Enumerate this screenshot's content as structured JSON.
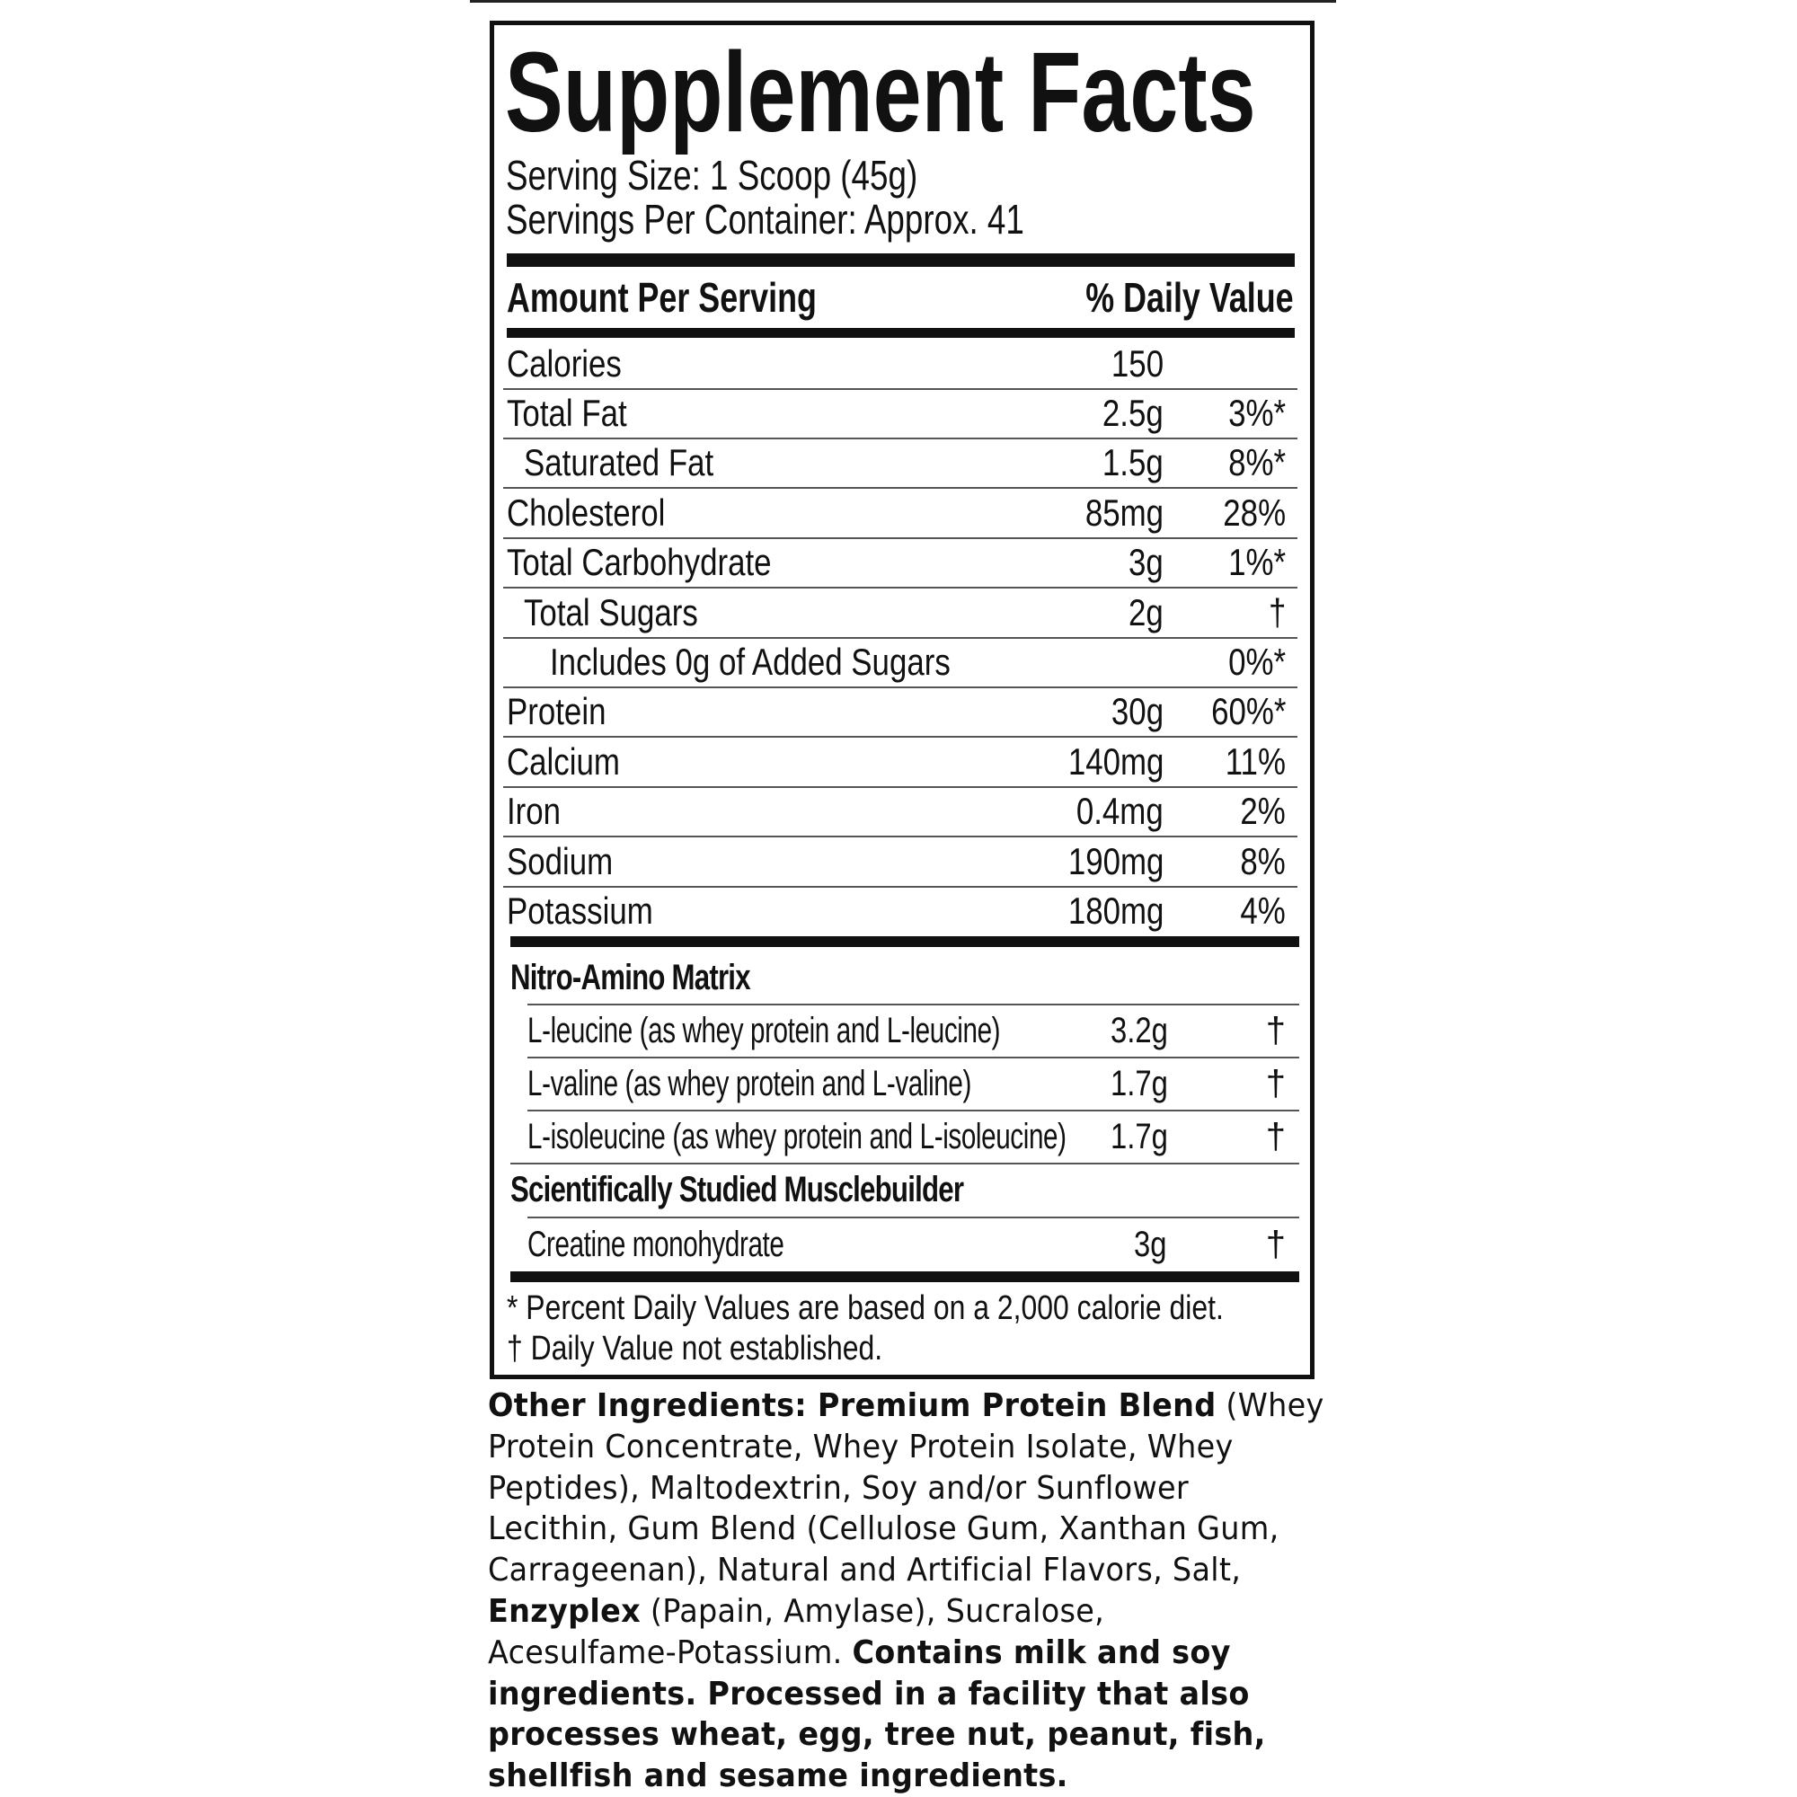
{
  "label": {
    "title": "Supplement Facts",
    "serving_size": "Serving Size: 1 Scoop (45g)",
    "servings_per_container": "Servings Per Container: Approx. 41",
    "header_left": "Amount Per Serving",
    "header_right": "% Daily Value",
    "nutrients": [
      {
        "name": "Calories",
        "amount": "150",
        "dv": "",
        "indent": 0
      },
      {
        "name": "Total Fat",
        "amount": "2.5g",
        "dv": "3%*",
        "indent": 0
      },
      {
        "name": "Saturated Fat",
        "amount": "1.5g",
        "dv": "8%*",
        "indent": 1
      },
      {
        "name": "Cholesterol",
        "amount": "85mg",
        "dv": "28%",
        "indent": 0
      },
      {
        "name": "Total Carbohydrate",
        "amount": "3g",
        "dv": "1%*",
        "indent": 0
      },
      {
        "name": "Total Sugars",
        "amount": "2g",
        "dv": "†",
        "indent": 1
      },
      {
        "name": "Includes 0g of Added Sugars",
        "amount": "",
        "dv": "0%*",
        "indent": 2
      },
      {
        "name": "Protein",
        "amount": "30g",
        "dv": "60%*",
        "indent": 0
      },
      {
        "name": "Calcium",
        "amount": "140mg",
        "dv": "11%",
        "indent": 0
      },
      {
        "name": "Iron",
        "amount": "0.4mg",
        "dv": "2%",
        "indent": 0
      },
      {
        "name": "Sodium",
        "amount": "190mg",
        "dv": "8%",
        "indent": 0
      },
      {
        "name": "Potassium",
        "amount": "180mg",
        "dv": "4%",
        "indent": 0
      }
    ],
    "sections": [
      {
        "title": "Nitro-Amino Matrix",
        "items": [
          {
            "name": "L-leucine (as whey protein and L-leucine)",
            "amount": "3.2g",
            "dv": "†"
          },
          {
            "name": "L-valine (as whey protein and L-valine)",
            "amount": "1.7g",
            "dv": "†"
          },
          {
            "name": "L-isoleucine (as whey protein and L-isoleucine)",
            "amount": "1.7g",
            "dv": "†"
          }
        ]
      },
      {
        "title": "Scientifically Studied Musclebuilder",
        "items": [
          {
            "name": "Creatine monohydrate",
            "amount": "3g",
            "dv": "†"
          }
        ]
      }
    ],
    "footnotes": [
      "* Percent Daily Values are based on a 2,000 calorie diet.",
      "† Daily Value not established."
    ]
  },
  "other_ingredients": {
    "lines": [
      [
        {
          "text": "Other Ingredients: Premium Protein Blend",
          "bold": true
        },
        {
          "text": " (Whey",
          "bold": false
        }
      ],
      [
        {
          "text": "Protein Concentrate, Whey Protein Isolate, Whey",
          "bold": false
        }
      ],
      [
        {
          "text": "Peptides), Maltodextrin, Soy and/or Sunflower",
          "bold": false
        }
      ],
      [
        {
          "text": "Lecithin, Gum Blend (Cellulose Gum, Xanthan Gum,",
          "bold": false
        }
      ],
      [
        {
          "text": "Carrageenan), Natural and Artificial Flavors, Salt,",
          "bold": false
        }
      ],
      [
        {
          "text": "Enzyplex",
          "bold": true
        },
        {
          "text": " (Papain, Amylase), Sucralose,",
          "bold": false
        }
      ],
      [
        {
          "text": "Acesulfame-Potassium. ",
          "bold": false
        },
        {
          "text": "Contains milk and soy",
          "bold": true
        }
      ],
      [
        {
          "text": "ingredients. Processed in a facility that also",
          "bold": true
        }
      ],
      [
        {
          "text": "processes wheat, egg, tree nut, peanut, fish,",
          "bold": true
        }
      ],
      [
        {
          "text": "shellfish and sesame ingredients.",
          "bold": true
        }
      ]
    ]
  }
}
